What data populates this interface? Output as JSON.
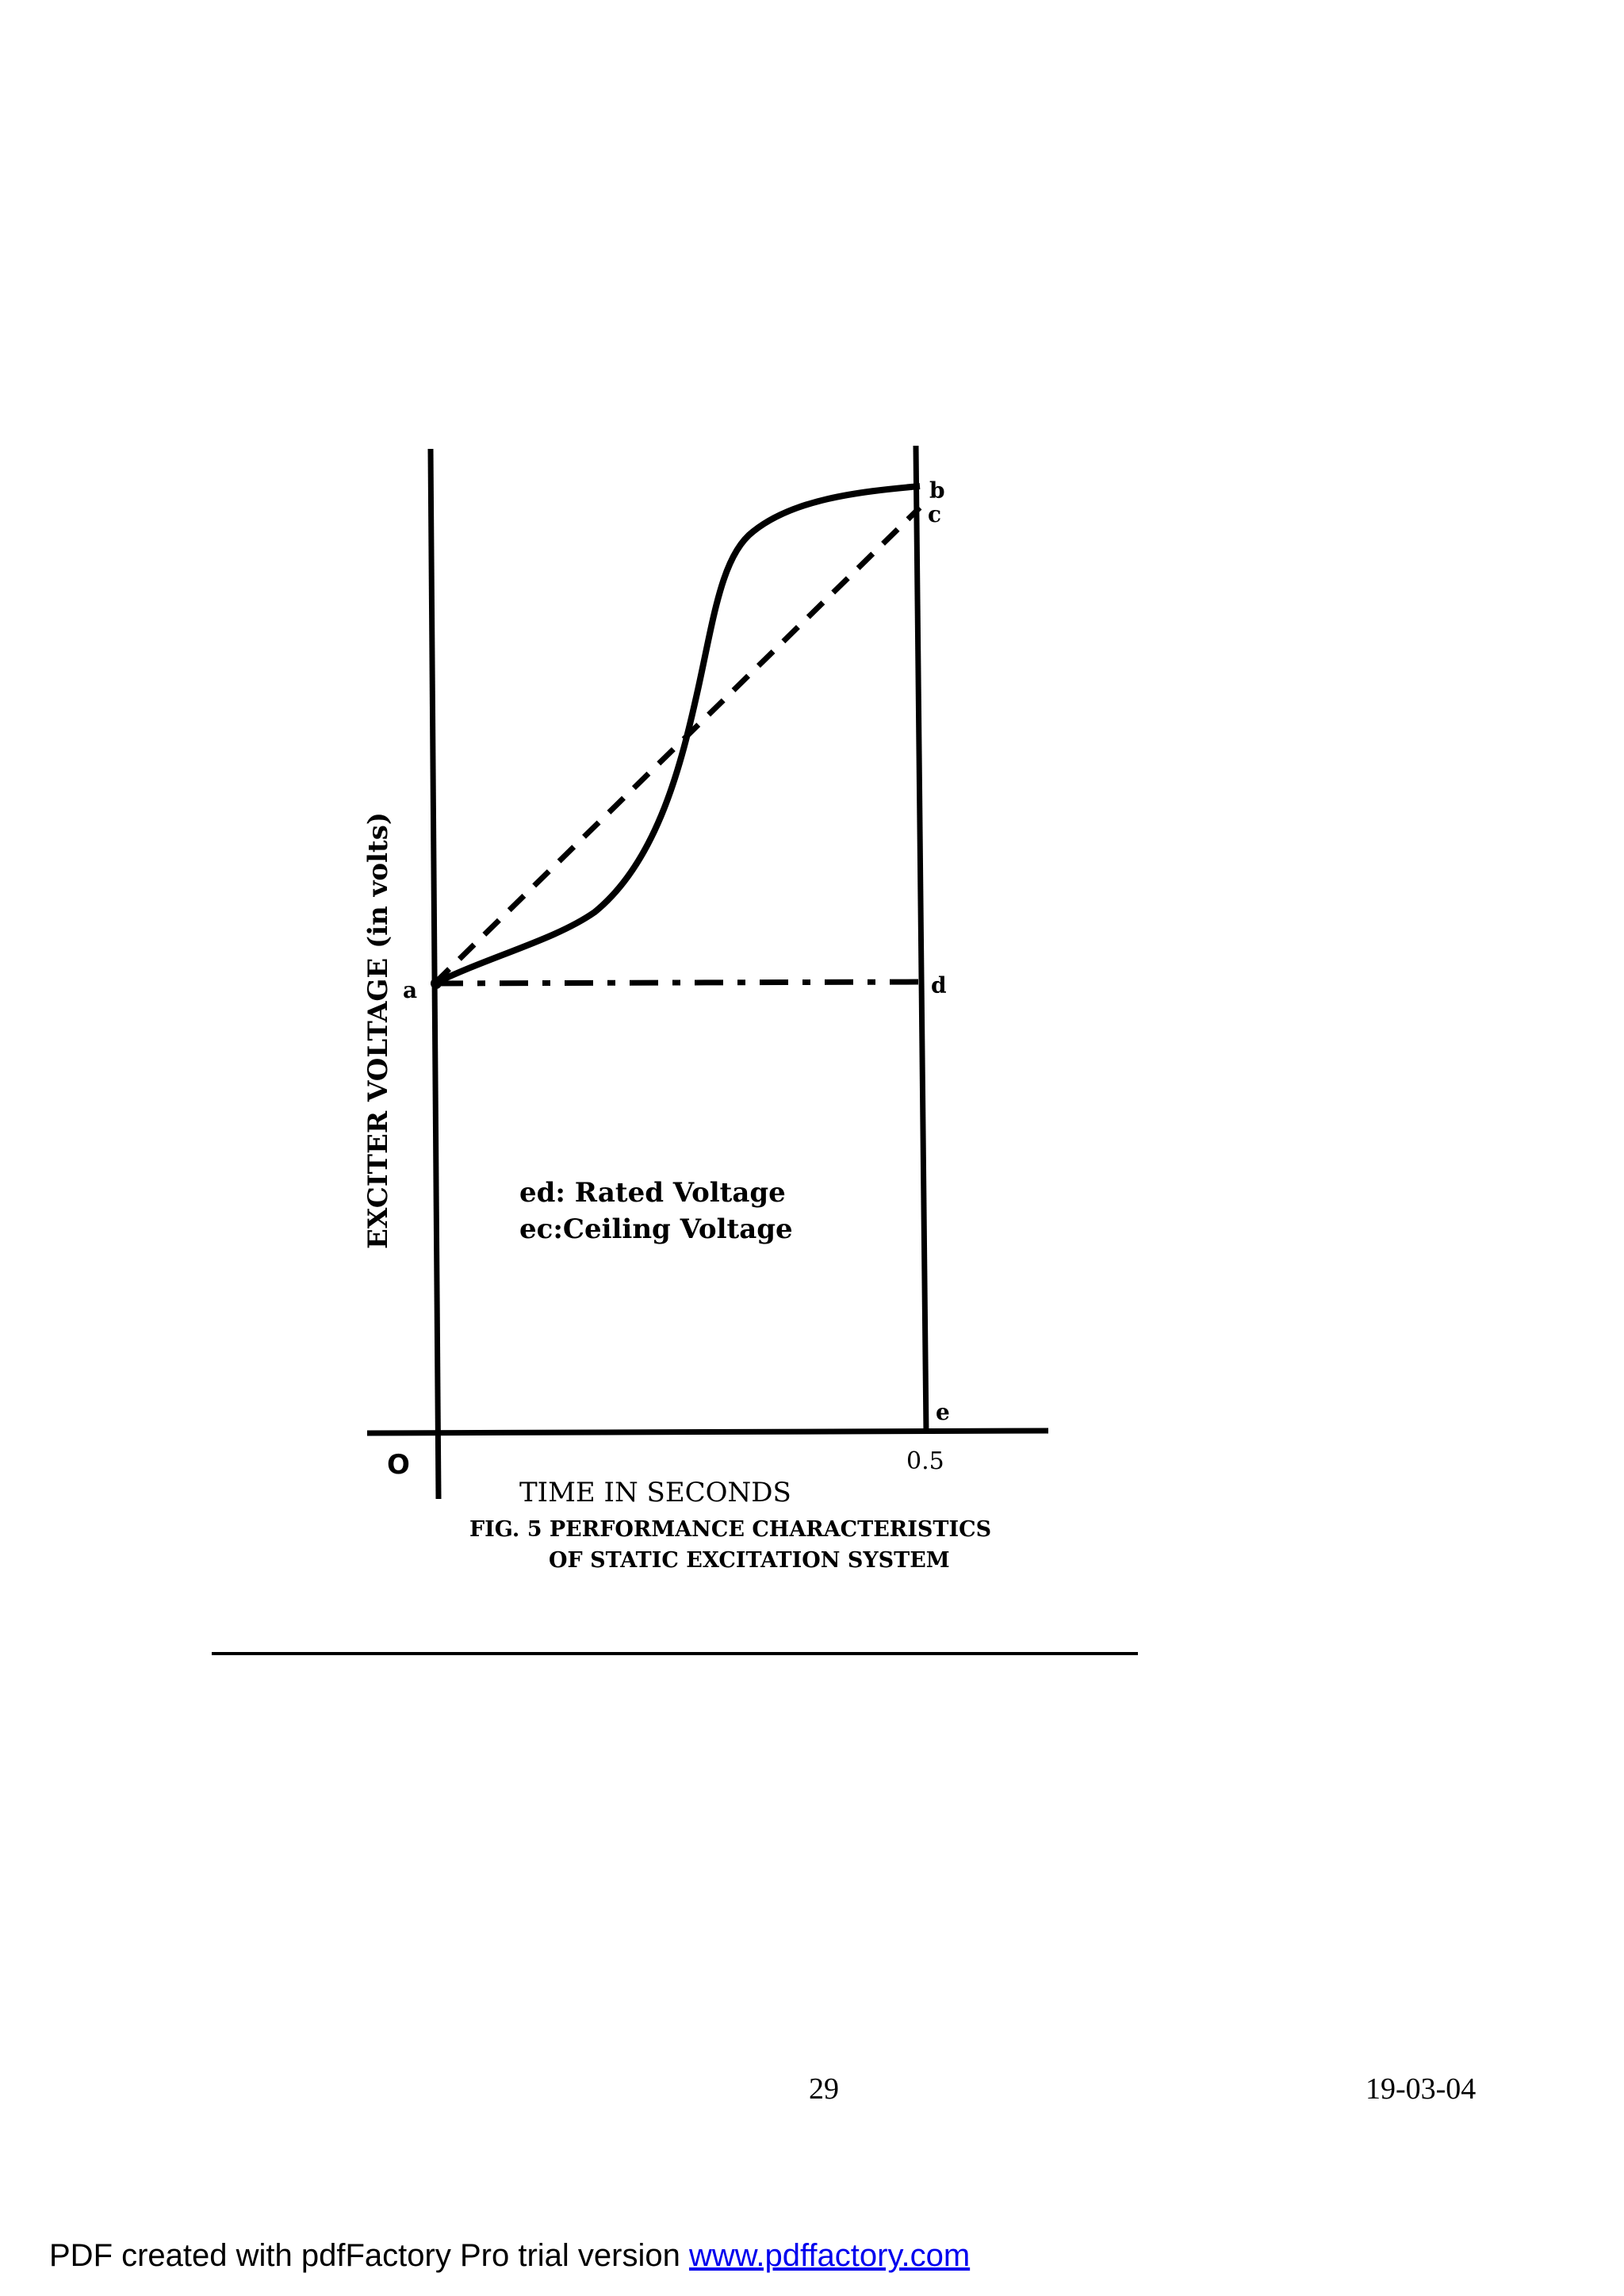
{
  "figure": {
    "point_labels": {
      "a": "a",
      "b": "b",
      "c": "c",
      "d": "d",
      "e": "e"
    },
    "origin_label": "O",
    "x_tick_label": "0.5",
    "y_axis_label": "EXCITER VOLTAGE (in volts)",
    "x_axis_label": "TIME IN SECONDS",
    "legend": {
      "line1": "ed: Rated Voltage",
      "line2": "ec:Ceiling Voltage"
    },
    "caption": {
      "line1": "FIG. 5  PERFORMANCE CHARACTERISTICS",
      "line2": "OF STATIC EXCITATION SYSTEM"
    }
  },
  "footer": {
    "page_number": "29",
    "date": "19-03-04",
    "pdf_note": "PDF created with pdfFactory Pro trial version ",
    "pdf_link": "www.pdffactory.com"
  }
}
